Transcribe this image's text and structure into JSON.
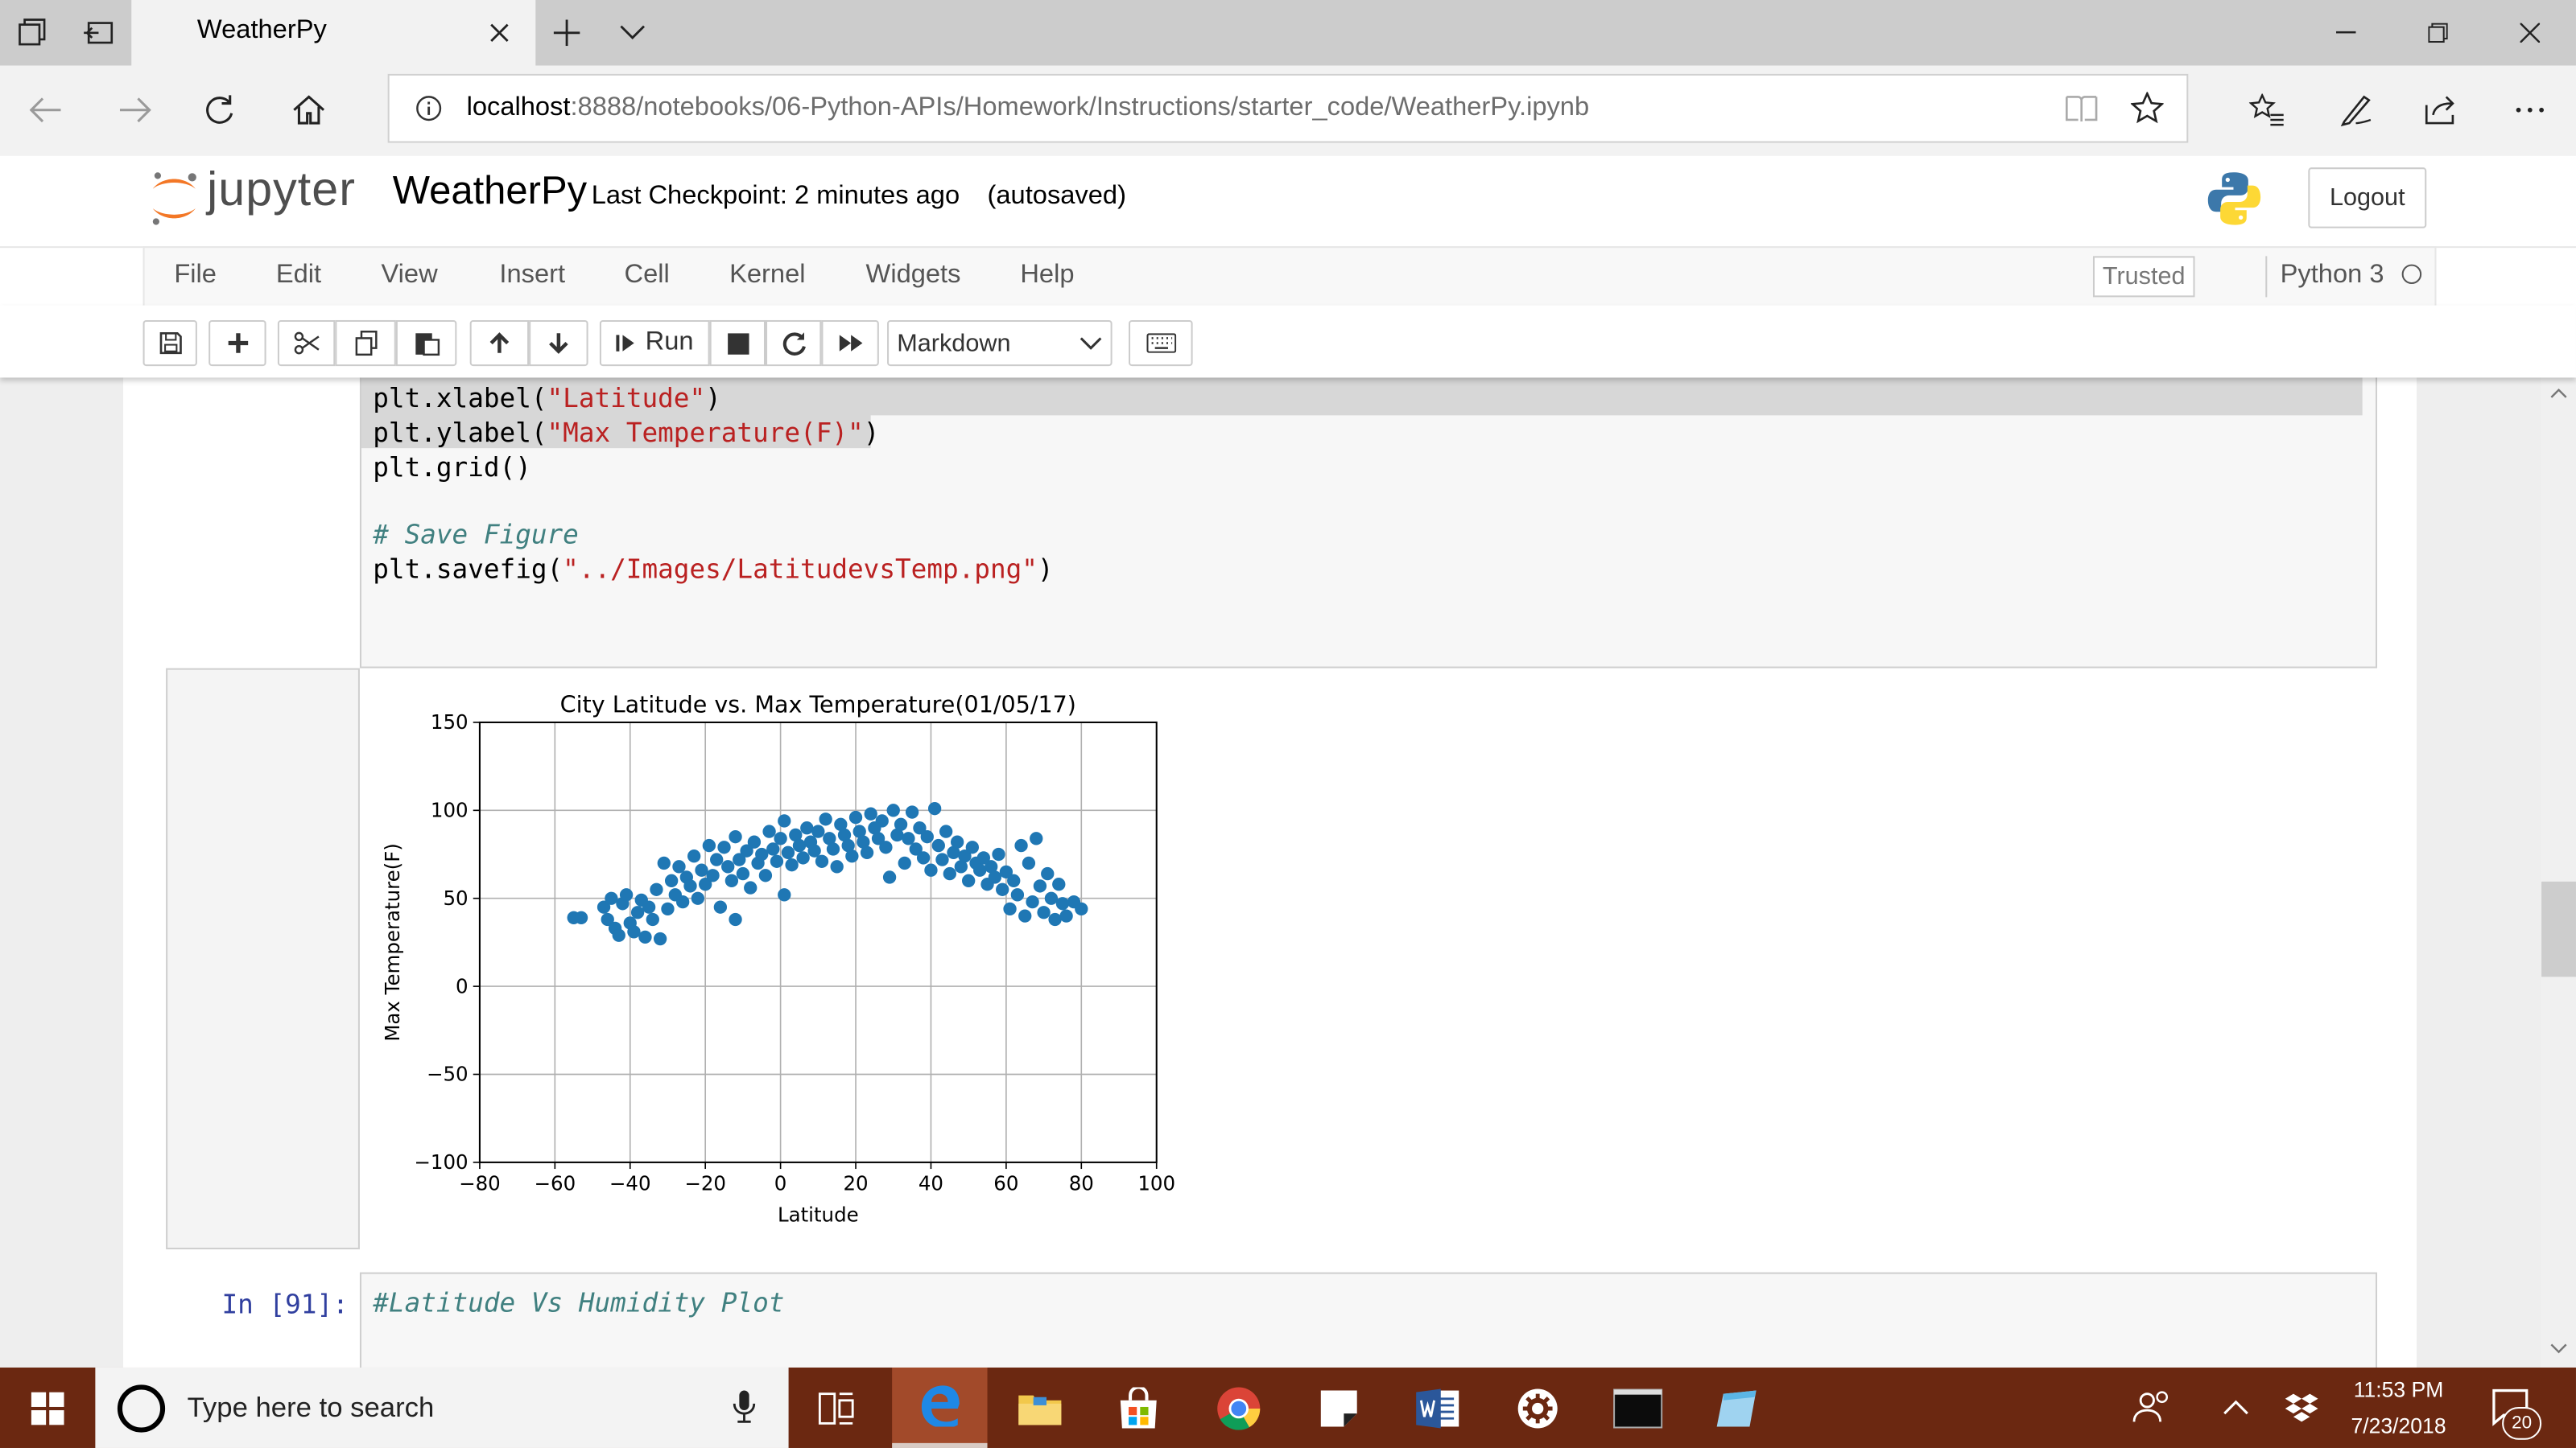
{
  "browser": {
    "tab_title": "WeatherPy",
    "url_host": "localhost",
    "url_path": ":8888/notebooks/06-Python-APIs/Homework/Instructions/starter_code/WeatherPy.ipynb"
  },
  "jupyter": {
    "logo_text": "jupyter",
    "notebook_name": "WeatherPy",
    "checkpoint": "Last Checkpoint: 2 minutes ago",
    "autosave": "(autosaved)",
    "logout_label": "Logout",
    "menu": [
      "File",
      "Edit",
      "View",
      "Insert",
      "Cell",
      "Kernel",
      "Widgets",
      "Help"
    ],
    "trusted_label": "Trusted",
    "kernel_name": "Python 3",
    "run_label": "Run",
    "cell_type": "Markdown"
  },
  "code_cell": {
    "lines": [
      {
        "pre": "plt.xlabel(",
        "str": "\"Latitude\"",
        "post": ")"
      },
      {
        "pre": "plt.ylabel(",
        "str": "\"Max Temperature(F)\"",
        "post": ")"
      },
      {
        "pre": "plt.grid()",
        "str": "",
        "post": ""
      },
      {
        "comment": "# Save Figure"
      },
      {
        "pre": "plt.savefig(",
        "str": "\"../Images/LatitudevsTemp.png\"",
        "post": ")"
      }
    ]
  },
  "next_cell": {
    "prompt": "In [91]:",
    "comment": "#Latitude Vs Humidity Plot"
  },
  "chart_data": {
    "type": "scatter",
    "title": "City Latitude vs. Max Temperature(01/05/17)",
    "xlabel": "Latitude",
    "ylabel": "Max Temperature(F)",
    "xlim": [
      -80,
      100
    ],
    "ylim": [
      -100,
      150
    ],
    "xticks": [
      "−80",
      "−60",
      "−40",
      "−20",
      "0",
      "20",
      "40",
      "60",
      "80",
      "100"
    ],
    "yticks": [
      "150",
      "100",
      "50",
      "0",
      "−50",
      "−100"
    ],
    "grid": true,
    "marker_color": "#1f77b4",
    "points": [
      [
        -55,
        39
      ],
      [
        -53,
        39
      ],
      [
        -47,
        45
      ],
      [
        -46,
        38
      ],
      [
        -45,
        50
      ],
      [
        -44,
        33
      ],
      [
        -43,
        29
      ],
      [
        -42,
        47
      ],
      [
        -41,
        52
      ],
      [
        -40,
        36
      ],
      [
        -39,
        31
      ],
      [
        -38,
        42
      ],
      [
        -37,
        49
      ],
      [
        -36,
        28
      ],
      [
        -35,
        45
      ],
      [
        -34,
        38
      ],
      [
        -33,
        55
      ],
      [
        -32,
        27
      ],
      [
        -31,
        70
      ],
      [
        -30,
        44
      ],
      [
        -29,
        60
      ],
      [
        -28,
        52
      ],
      [
        -27,
        68
      ],
      [
        -26,
        48
      ],
      [
        -25,
        62
      ],
      [
        -24,
        57
      ],
      [
        -23,
        74
      ],
      [
        -22,
        50
      ],
      [
        -21,
        66
      ],
      [
        -20,
        58
      ],
      [
        -19,
        80
      ],
      [
        -18,
        63
      ],
      [
        -17,
        72
      ],
      [
        -16,
        45
      ],
      [
        -15,
        79
      ],
      [
        -14,
        68
      ],
      [
        -13,
        60
      ],
      [
        -12,
        38
      ],
      [
        -12,
        85
      ],
      [
        -11,
        72
      ],
      [
        -10,
        64
      ],
      [
        -9,
        77
      ],
      [
        -8,
        56
      ],
      [
        -7,
        82
      ],
      [
        -6,
        70
      ],
      [
        -5,
        75
      ],
      [
        -4,
        63
      ],
      [
        -3,
        88
      ],
      [
        -2,
        78
      ],
      [
        -1,
        71
      ],
      [
        0,
        84
      ],
      [
        1,
        52
      ],
      [
        1,
        94
      ],
      [
        2,
        76
      ],
      [
        3,
        69
      ],
      [
        4,
        86
      ],
      [
        5,
        80
      ],
      [
        6,
        73
      ],
      [
        7,
        90
      ],
      [
        8,
        82
      ],
      [
        9,
        77
      ],
      [
        10,
        88
      ],
      [
        11,
        71
      ],
      [
        12,
        95
      ],
      [
        13,
        84
      ],
      [
        14,
        78
      ],
      [
        15,
        68
      ],
      [
        16,
        92
      ],
      [
        17,
        86
      ],
      [
        18,
        80
      ],
      [
        19,
        74
      ],
      [
        20,
        96
      ],
      [
        21,
        88
      ],
      [
        22,
        82
      ],
      [
        23,
        76
      ],
      [
        24,
        98
      ],
      [
        25,
        90
      ],
      [
        26,
        84
      ],
      [
        27,
        94
      ],
      [
        28,
        79
      ],
      [
        29,
        62
      ],
      [
        30,
        100
      ],
      [
        31,
        86
      ],
      [
        32,
        92
      ],
      [
        33,
        70
      ],
      [
        34,
        84
      ],
      [
        35,
        99
      ],
      [
        36,
        78
      ],
      [
        37,
        90
      ],
      [
        38,
        73
      ],
      [
        39,
        85
      ],
      [
        40,
        66
      ],
      [
        41,
        101
      ],
      [
        42,
        80
      ],
      [
        43,
        72
      ],
      [
        44,
        88
      ],
      [
        45,
        64
      ],
      [
        46,
        76
      ],
      [
        47,
        82
      ],
      [
        48,
        68
      ],
      [
        49,
        74
      ],
      [
        50,
        60
      ],
      [
        51,
        79
      ],
      [
        52,
        70
      ],
      [
        53,
        66
      ],
      [
        54,
        73
      ],
      [
        55,
        58
      ],
      [
        56,
        68
      ],
      [
        57,
        62
      ],
      [
        58,
        75
      ],
      [
        59,
        55
      ],
      [
        60,
        65
      ],
      [
        61,
        44
      ],
      [
        62,
        60
      ],
      [
        63,
        52
      ],
      [
        64,
        80
      ],
      [
        65,
        40
      ],
      [
        66,
        70
      ],
      [
        67,
        48
      ],
      [
        68,
        84
      ],
      [
        69,
        57
      ],
      [
        70,
        42
      ],
      [
        71,
        64
      ],
      [
        72,
        50
      ],
      [
        73,
        38
      ],
      [
        74,
        58
      ],
      [
        75,
        47
      ],
      [
        76,
        40
      ],
      [
        78,
        48
      ],
      [
        80,
        44
      ]
    ]
  },
  "taskbar": {
    "search_placeholder": "Type here to search",
    "time": "11:53 PM",
    "date": "7/23/2018",
    "notifications": "20"
  }
}
